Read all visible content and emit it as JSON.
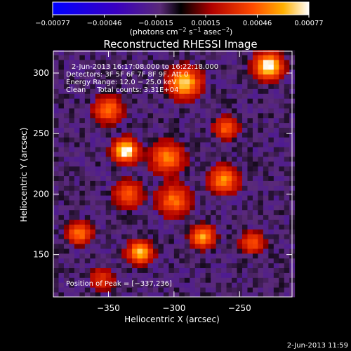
{
  "chart_data": {
    "type": "heatmap",
    "title": "Reconstructed RHESSI Image",
    "xlabel": "Heliocentric X (arcsec)",
    "ylabel": "Heliocentric Y (arcsec)",
    "xlim": [
      -392,
      -210
    ],
    "ylim": [
      115,
      318
    ],
    "x_ticks": [
      -350,
      -300,
      -250
    ],
    "y_ticks": [
      150,
      200,
      250,
      300
    ],
    "x_tick_labels": [
      "−350",
      "−300",
      "−250"
    ],
    "y_tick_labels": [
      "150",
      "200",
      "250",
      "300"
    ],
    "colorbar": {
      "min": -0.00077,
      "max": 0.00077,
      "tick_values": [
        -0.00077,
        -0.00046,
        -0.00015,
        0.00015,
        0.00046,
        0.00077
      ],
      "tick_labels": [
        "−0.00077",
        "−0.00046",
        "−0.00015",
        "0.00015",
        "0.00046",
        "0.00077"
      ],
      "unit_label": "(photons cm",
      "unit_exp1": "−2",
      "unit_mid": " s",
      "unit_exp2": "−1",
      "unit_mid2": " asec",
      "unit_exp3": "−2",
      "unit_end": ")"
    },
    "annotations": [
      "2-Jun-2013 16:17:08.000 to 16:22:18.000",
      "Detectors: 3F 5F 6F 7F 8F 9F, Att 0",
      "Energy Range: 12.0 − 25.0 keV",
      "Clean     Total counts: 3.31E+04"
    ],
    "peak_label": "Position of Peak = [−337,236]",
    "peak_position": [
      -337,
      236
    ],
    "sources": [
      {
        "x": -337,
        "y": 236,
        "amp": 1.0,
        "r": 6
      },
      {
        "x": -228,
        "y": 306,
        "amp": 0.95,
        "r": 7
      },
      {
        "x": -292,
        "y": 292,
        "amp": 0.8,
        "r": 8
      },
      {
        "x": -326,
        "y": 152,
        "amp": 0.8,
        "r": 6
      },
      {
        "x": -278,
        "y": 165,
        "amp": 0.7,
        "r": 6
      },
      {
        "x": -262,
        "y": 212,
        "amp": 0.65,
        "r": 7
      },
      {
        "x": -305,
        "y": 230,
        "amp": 0.6,
        "r": 8
      },
      {
        "x": -372,
        "y": 168,
        "amp": 0.6,
        "r": 6
      },
      {
        "x": -350,
        "y": 270,
        "amp": 0.55,
        "r": 7
      },
      {
        "x": -300,
        "y": 195,
        "amp": 0.55,
        "r": 8
      },
      {
        "x": -260,
        "y": 255,
        "amp": 0.5,
        "r": 6
      },
      {
        "x": -335,
        "y": 200,
        "amp": 0.5,
        "r": 7
      },
      {
        "x": -240,
        "y": 160,
        "amp": 0.45,
        "r": 6
      },
      {
        "x": -355,
        "y": 130,
        "amp": 0.35,
        "r": 6
      }
    ]
  },
  "footer_date": "2-Jun-2013 11:59"
}
